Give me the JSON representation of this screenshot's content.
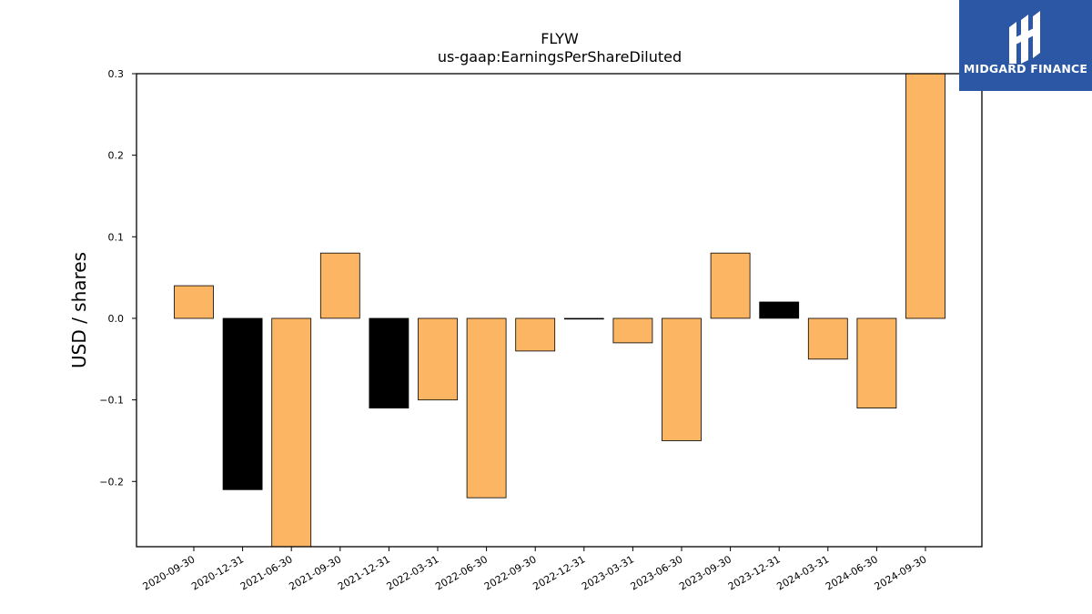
{
  "logo": {
    "text": "MIDGARD FINANCE",
    "bg_color": "#2b57a5"
  },
  "chart_data": {
    "type": "bar",
    "title": "FLYW",
    "subtitle": "us-gaap:EarningsPerShareDiluted",
    "xlabel": "",
    "ylabel": "USD / shares",
    "ylim": [
      -0.28,
      0.3
    ],
    "yticks": [
      -0.2,
      -0.1,
      0.0,
      0.1,
      0.2,
      0.3
    ],
    "ytick_labels": [
      "−0.2",
      "−0.1",
      "0.0",
      "0.1",
      "0.2",
      "0.3"
    ],
    "categories": [
      "2020-09-30",
      "2020-12-31",
      "2021-06-30",
      "2021-09-30",
      "2021-12-31",
      "2022-03-31",
      "2022-06-30",
      "2022-09-30",
      "2022-12-31",
      "2023-03-31",
      "2023-06-30",
      "2023-09-30",
      "2023-12-31",
      "2024-03-31",
      "2024-06-30",
      "2024-09-30"
    ],
    "values": [
      0.04,
      -0.21,
      -0.29,
      0.08,
      -0.11,
      -0.1,
      -0.22,
      -0.04,
      0.0,
      -0.03,
      -0.15,
      0.08,
      0.02,
      -0.05,
      -0.11,
      0.35
    ],
    "bar_colors": [
      "#fbb563",
      "#000000",
      "#fbb563",
      "#fbb563",
      "#000000",
      "#fbb563",
      "#fbb563",
      "#fbb563",
      "#fbb563",
      "#fbb563",
      "#fbb563",
      "#fbb563",
      "#000000",
      "#fbb563",
      "#fbb563",
      "#fbb563"
    ],
    "grid": false,
    "legend": false
  }
}
